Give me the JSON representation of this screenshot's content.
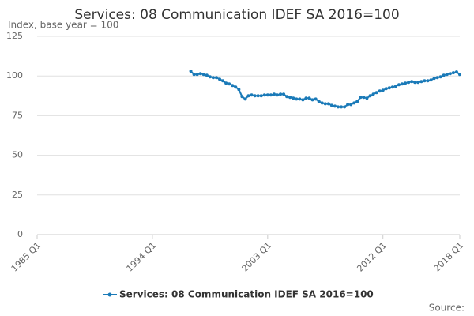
{
  "chart_data": {
    "type": "line",
    "title": "Services: 08 Communication IDEF SA 2016=100",
    "y_axis_label": "Index, base year = 100",
    "source_label": "Source:",
    "categories": [
      "1985 Q1",
      null,
      null,
      null,
      null,
      null,
      null,
      null,
      null,
      null,
      null,
      null,
      null,
      null,
      null,
      null,
      null,
      null,
      null,
      null,
      null,
      null,
      null,
      null,
      null,
      null,
      null,
      null,
      null,
      null,
      null,
      null,
      null,
      null,
      null,
      null,
      "1994 Q1",
      null,
      null,
      null,
      null,
      null,
      null,
      null,
      null,
      null,
      null,
      null,
      null,
      null,
      null,
      null,
      null,
      null,
      null,
      null,
      null,
      null,
      null,
      null,
      null,
      null,
      null,
      null,
      null,
      null,
      null,
      null,
      null,
      null,
      null,
      null,
      "2003 Q1",
      null,
      null,
      null,
      null,
      null,
      null,
      null,
      null,
      null,
      null,
      null,
      null,
      null,
      null,
      null,
      null,
      null,
      null,
      null,
      null,
      null,
      null,
      null,
      null,
      null,
      null,
      null,
      null,
      null,
      null,
      null,
      null,
      null,
      null,
      null,
      "2012 Q1",
      null,
      null,
      null,
      null,
      null,
      null,
      null,
      null,
      null,
      null,
      null,
      null,
      null,
      null,
      null,
      null,
      null,
      null,
      null,
      null,
      null,
      null,
      null,
      "2018 Q1"
    ],
    "series": [
      {
        "name": "Services: 08 Communication IDEF SA 2016=100",
        "color": "#1a7ab8",
        "values": [
          null,
          null,
          null,
          null,
          null,
          null,
          null,
          null,
          null,
          null,
          null,
          null,
          null,
          null,
          null,
          null,
          null,
          null,
          null,
          null,
          null,
          null,
          null,
          null,
          null,
          null,
          null,
          null,
          null,
          null,
          null,
          null,
          null,
          null,
          null,
          null,
          null,
          null,
          null,
          null,
          null,
          null,
          null,
          null,
          null,
          null,
          null,
          null,
          103,
          101,
          101,
          101.5,
          101,
          100.5,
          99.5,
          99,
          99,
          98,
          97,
          95.5,
          95,
          94,
          93,
          91.5,
          87,
          85.5,
          87.5,
          88,
          87.5,
          87.5,
          87.5,
          88,
          88,
          88,
          88.5,
          88,
          88.5,
          88.5,
          87,
          86.5,
          86,
          85.5,
          85.5,
          85,
          86,
          86,
          85,
          85.5,
          84,
          83,
          82.5,
          82.5,
          81.5,
          81,
          80.5,
          80.5,
          80.5,
          82,
          82,
          83,
          84,
          86.5,
          86.5,
          86,
          87.5,
          88.5,
          89.5,
          90.5,
          91,
          92,
          92.5,
          93,
          93.5,
          94.5,
          95,
          95.5,
          96,
          96.5,
          96,
          96,
          96.5,
          97,
          97,
          97.5,
          98.5,
          99,
          99.5,
          100.5,
          101,
          101.5,
          102,
          102.5,
          101
        ]
      }
    ],
    "ylim": [
      0,
      125
    ],
    "yticks": [
      0,
      25,
      50,
      75,
      100,
      125
    ],
    "grid": true
  }
}
